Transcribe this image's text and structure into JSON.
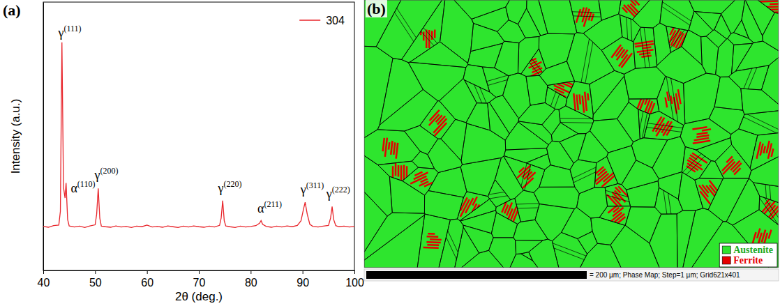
{
  "chart_data": {
    "type": "line",
    "panel_label": "(a)",
    "x_label": "2θ (deg.)",
    "y_label": "Intensity (a.u.)",
    "xlim": [
      40,
      100
    ],
    "xticks": [
      40,
      50,
      60,
      70,
      80,
      90,
      100
    ],
    "ylim": [
      0,
      100
    ],
    "tick_labels": "x",
    "legend": "upper right",
    "x": [
      40,
      41,
      42,
      43,
      43.3,
      43.6,
      43.9,
      44.2,
      44.4,
      44.7,
      45,
      46,
      47,
      48,
      49,
      50,
      50.3,
      50.6,
      50.9,
      51.2,
      52,
      53,
      54,
      55,
      56,
      57,
      58,
      59,
      60,
      61,
      62,
      63,
      64,
      65,
      66,
      67,
      68,
      69,
      70,
      71,
      72,
      73,
      74,
      74.3,
      74.6,
      74.9,
      75.2,
      76,
      77,
      78,
      79,
      80,
      81,
      81.7,
      82,
      82.3,
      83,
      84,
      85,
      86,
      87,
      88,
      89,
      89.7,
      90.2,
      90.5,
      90.9,
      91.4,
      92,
      93,
      94,
      95,
      95.4,
      95.7,
      96,
      96.4,
      97,
      98,
      99,
      100
    ],
    "series": [
      {
        "name": "304",
        "color": "#e8252b",
        "line_style": "solid",
        "values": [
          16.4,
          16.1,
          16.7,
          16.9,
          22,
          85,
          31,
          27,
          32.6,
          19,
          16.6,
          16.2,
          16.5,
          16,
          16.6,
          17,
          21,
          30.6,
          19.5,
          16.5,
          16.3,
          16.1,
          16.6,
          16.2,
          16.4,
          16,
          16.5,
          16.3,
          16.9,
          16.2,
          16.4,
          16.1,
          16.6,
          16.3,
          16,
          16.5,
          16.2,
          16.6,
          16.3,
          16.1,
          16.5,
          16.2,
          16.8,
          19.5,
          26,
          18.5,
          16.6,
          16.3,
          16,
          16.5,
          16.2,
          16.4,
          16.7,
          17.6,
          18.6,
          17.2,
          16.4,
          16.1,
          16.5,
          16.2,
          16.6,
          16.3,
          16.8,
          18.5,
          23,
          25.4,
          21,
          17.2,
          16.4,
          16.2,
          16.5,
          16.8,
          19.5,
          23.8,
          19,
          16.7,
          16.3,
          16.5,
          16.2,
          16.4
        ]
      }
    ],
    "annotations": [
      {
        "text": "γ",
        "sup": "(111)",
        "x": 42.9,
        "y": 87
      },
      {
        "text": "α",
        "sup": "(110)",
        "x": 45.3,
        "y": 29
      },
      {
        "text": "γ",
        "sup": "(200)",
        "x": 49.9,
        "y": 34
      },
      {
        "text": "γ",
        "sup": "(220)",
        "x": 73.7,
        "y": 29
      },
      {
        "text": "α",
        "sup": "(211)",
        "x": 81.3,
        "y": 21.5
      },
      {
        "text": "γ",
        "sup": "(311)",
        "x": 89.6,
        "y": 28.5
      },
      {
        "text": "γ",
        "sup": "(222)",
        "x": 94.6,
        "y": 27
      }
    ]
  },
  "phase_map": {
    "panel_label": "(b)",
    "legend": [
      {
        "name": "Austenite",
        "color": "#2ee52e"
      },
      {
        "name": "Ferrite",
        "color": "#e60000"
      }
    ],
    "scale_bar_text": "= 200 µm; Phase Map; Step=1 µm; Grid621x401"
  }
}
